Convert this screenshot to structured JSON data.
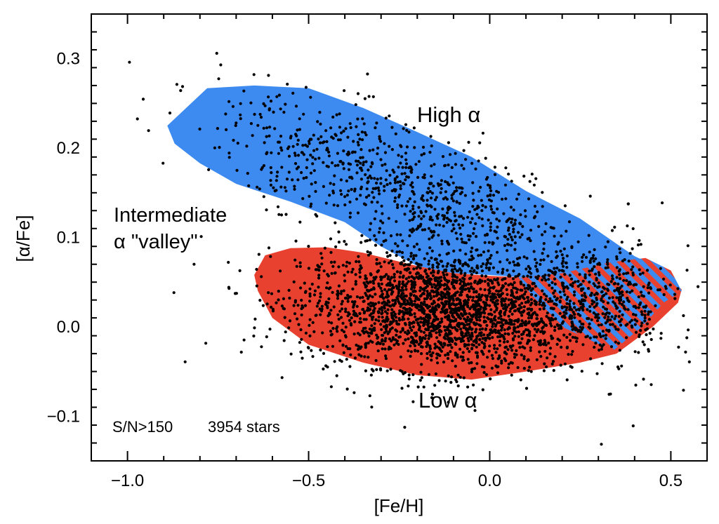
{
  "chart_data": {
    "type": "scatter",
    "xlabel": "[Fe/H]",
    "ylabel": "[α/Fe]",
    "xlim": [
      -1.1,
      0.6
    ],
    "ylim": [
      -0.15,
      0.35
    ],
    "xticks": [
      -1.0,
      -0.5,
      0.0,
      0.5
    ],
    "xtick_labels": [
      "−1.0",
      "−0.5",
      "0.0",
      "0.5"
    ],
    "yticks": [
      -0.1,
      0.0,
      0.1,
      0.2,
      0.3
    ],
    "ytick_labels": [
      "−0.1",
      "0.0",
      "0.1",
      "0.2",
      "0.3"
    ],
    "grid": false,
    "colors": {
      "high_alpha": "#3d8af0",
      "low_alpha": "#e8412f",
      "points": "#000000"
    },
    "regions": [
      {
        "name": "High α",
        "polygon": [
          [
            -0.88,
            0.229
          ],
          [
            -0.78,
            0.267
          ],
          [
            -0.65,
            0.27
          ],
          [
            -0.5,
            0.267
          ],
          [
            -0.35,
            0.245
          ],
          [
            -0.2,
            0.218
          ],
          [
            -0.05,
            0.19
          ],
          [
            0.1,
            0.152
          ],
          [
            0.25,
            0.121
          ],
          [
            0.4,
            0.079
          ],
          [
            0.5,
            0.06
          ],
          [
            0.53,
            0.04
          ],
          [
            0.48,
            0.027
          ],
          [
            0.35,
            0.04
          ],
          [
            0.25,
            0.048
          ],
          [
            0.1,
            0.055
          ],
          [
            0.0,
            0.058
          ],
          [
            -0.1,
            0.06
          ],
          [
            -0.2,
            0.068
          ],
          [
            -0.3,
            0.09
          ],
          [
            -0.4,
            0.117
          ],
          [
            -0.55,
            0.14
          ],
          [
            -0.7,
            0.16
          ],
          [
            -0.8,
            0.183
          ],
          [
            -0.87,
            0.205
          ],
          [
            -0.89,
            0.225
          ]
        ]
      },
      {
        "name": "Low α",
        "polygon": [
          [
            -0.65,
            0.058
          ],
          [
            -0.62,
            0.08
          ],
          [
            -0.55,
            0.088
          ],
          [
            -0.45,
            0.089
          ],
          [
            -0.35,
            0.083
          ],
          [
            -0.2,
            0.068
          ],
          [
            -0.1,
            0.06
          ],
          [
            0.0,
            0.057
          ],
          [
            0.1,
            0.055
          ],
          [
            0.25,
            0.052
          ],
          [
            0.35,
            0.062
          ],
          [
            0.45,
            0.065
          ],
          [
            0.53,
            0.042
          ],
          [
            0.52,
            0.027
          ],
          [
            0.45,
            0.0
          ],
          [
            0.35,
            -0.03
          ],
          [
            0.25,
            -0.04
          ],
          [
            0.1,
            -0.05
          ],
          [
            -0.05,
            -0.059
          ],
          [
            -0.2,
            -0.054
          ],
          [
            -0.35,
            -0.04
          ],
          [
            -0.5,
            -0.02
          ],
          [
            -0.6,
            0.01
          ],
          [
            -0.64,
            0.04
          ]
        ]
      },
      {
        "name": "overlap",
        "polygon": [
          [
            0.08,
            0.055
          ],
          [
            0.2,
            0.06
          ],
          [
            0.33,
            0.072
          ],
          [
            0.43,
            0.077
          ],
          [
            0.5,
            0.063
          ],
          [
            0.53,
            0.04
          ],
          [
            0.48,
            0.027
          ],
          [
            0.42,
            0.0
          ],
          [
            0.34,
            -0.027
          ],
          [
            0.2,
            0.0
          ],
          [
            0.13,
            0.028
          ]
        ]
      }
    ],
    "stars_total": 3954,
    "scatter_model": [
      {
        "region": "Low α",
        "count": 2350,
        "cx": -0.12,
        "cy": 0.018,
        "sx": 0.2,
        "sy": 0.033,
        "slope": -0.02
      },
      {
        "region": "High α",
        "count": 800,
        "cx": -0.23,
        "cy": 0.155,
        "sx": 0.26,
        "sy": 0.034,
        "slope": -0.145
      },
      {
        "region": "overlap",
        "count": 300,
        "cx": 0.33,
        "cy": 0.03,
        "sx": 0.08,
        "sy": 0.03,
        "slope": -0.05
      },
      {
        "region": "outliers",
        "count": 80,
        "cx": -0.1,
        "cy": 0.04,
        "sx": 0.38,
        "sy": 0.07,
        "slope": -0.06
      }
    ],
    "annotations": {
      "high_label": "High α",
      "low_label": "Low α",
      "valley_line1": "Intermediate",
      "valley_line2": "α \"valley\"",
      "sn_text": "S/N>150",
      "stars_text": "3954 stars"
    }
  }
}
